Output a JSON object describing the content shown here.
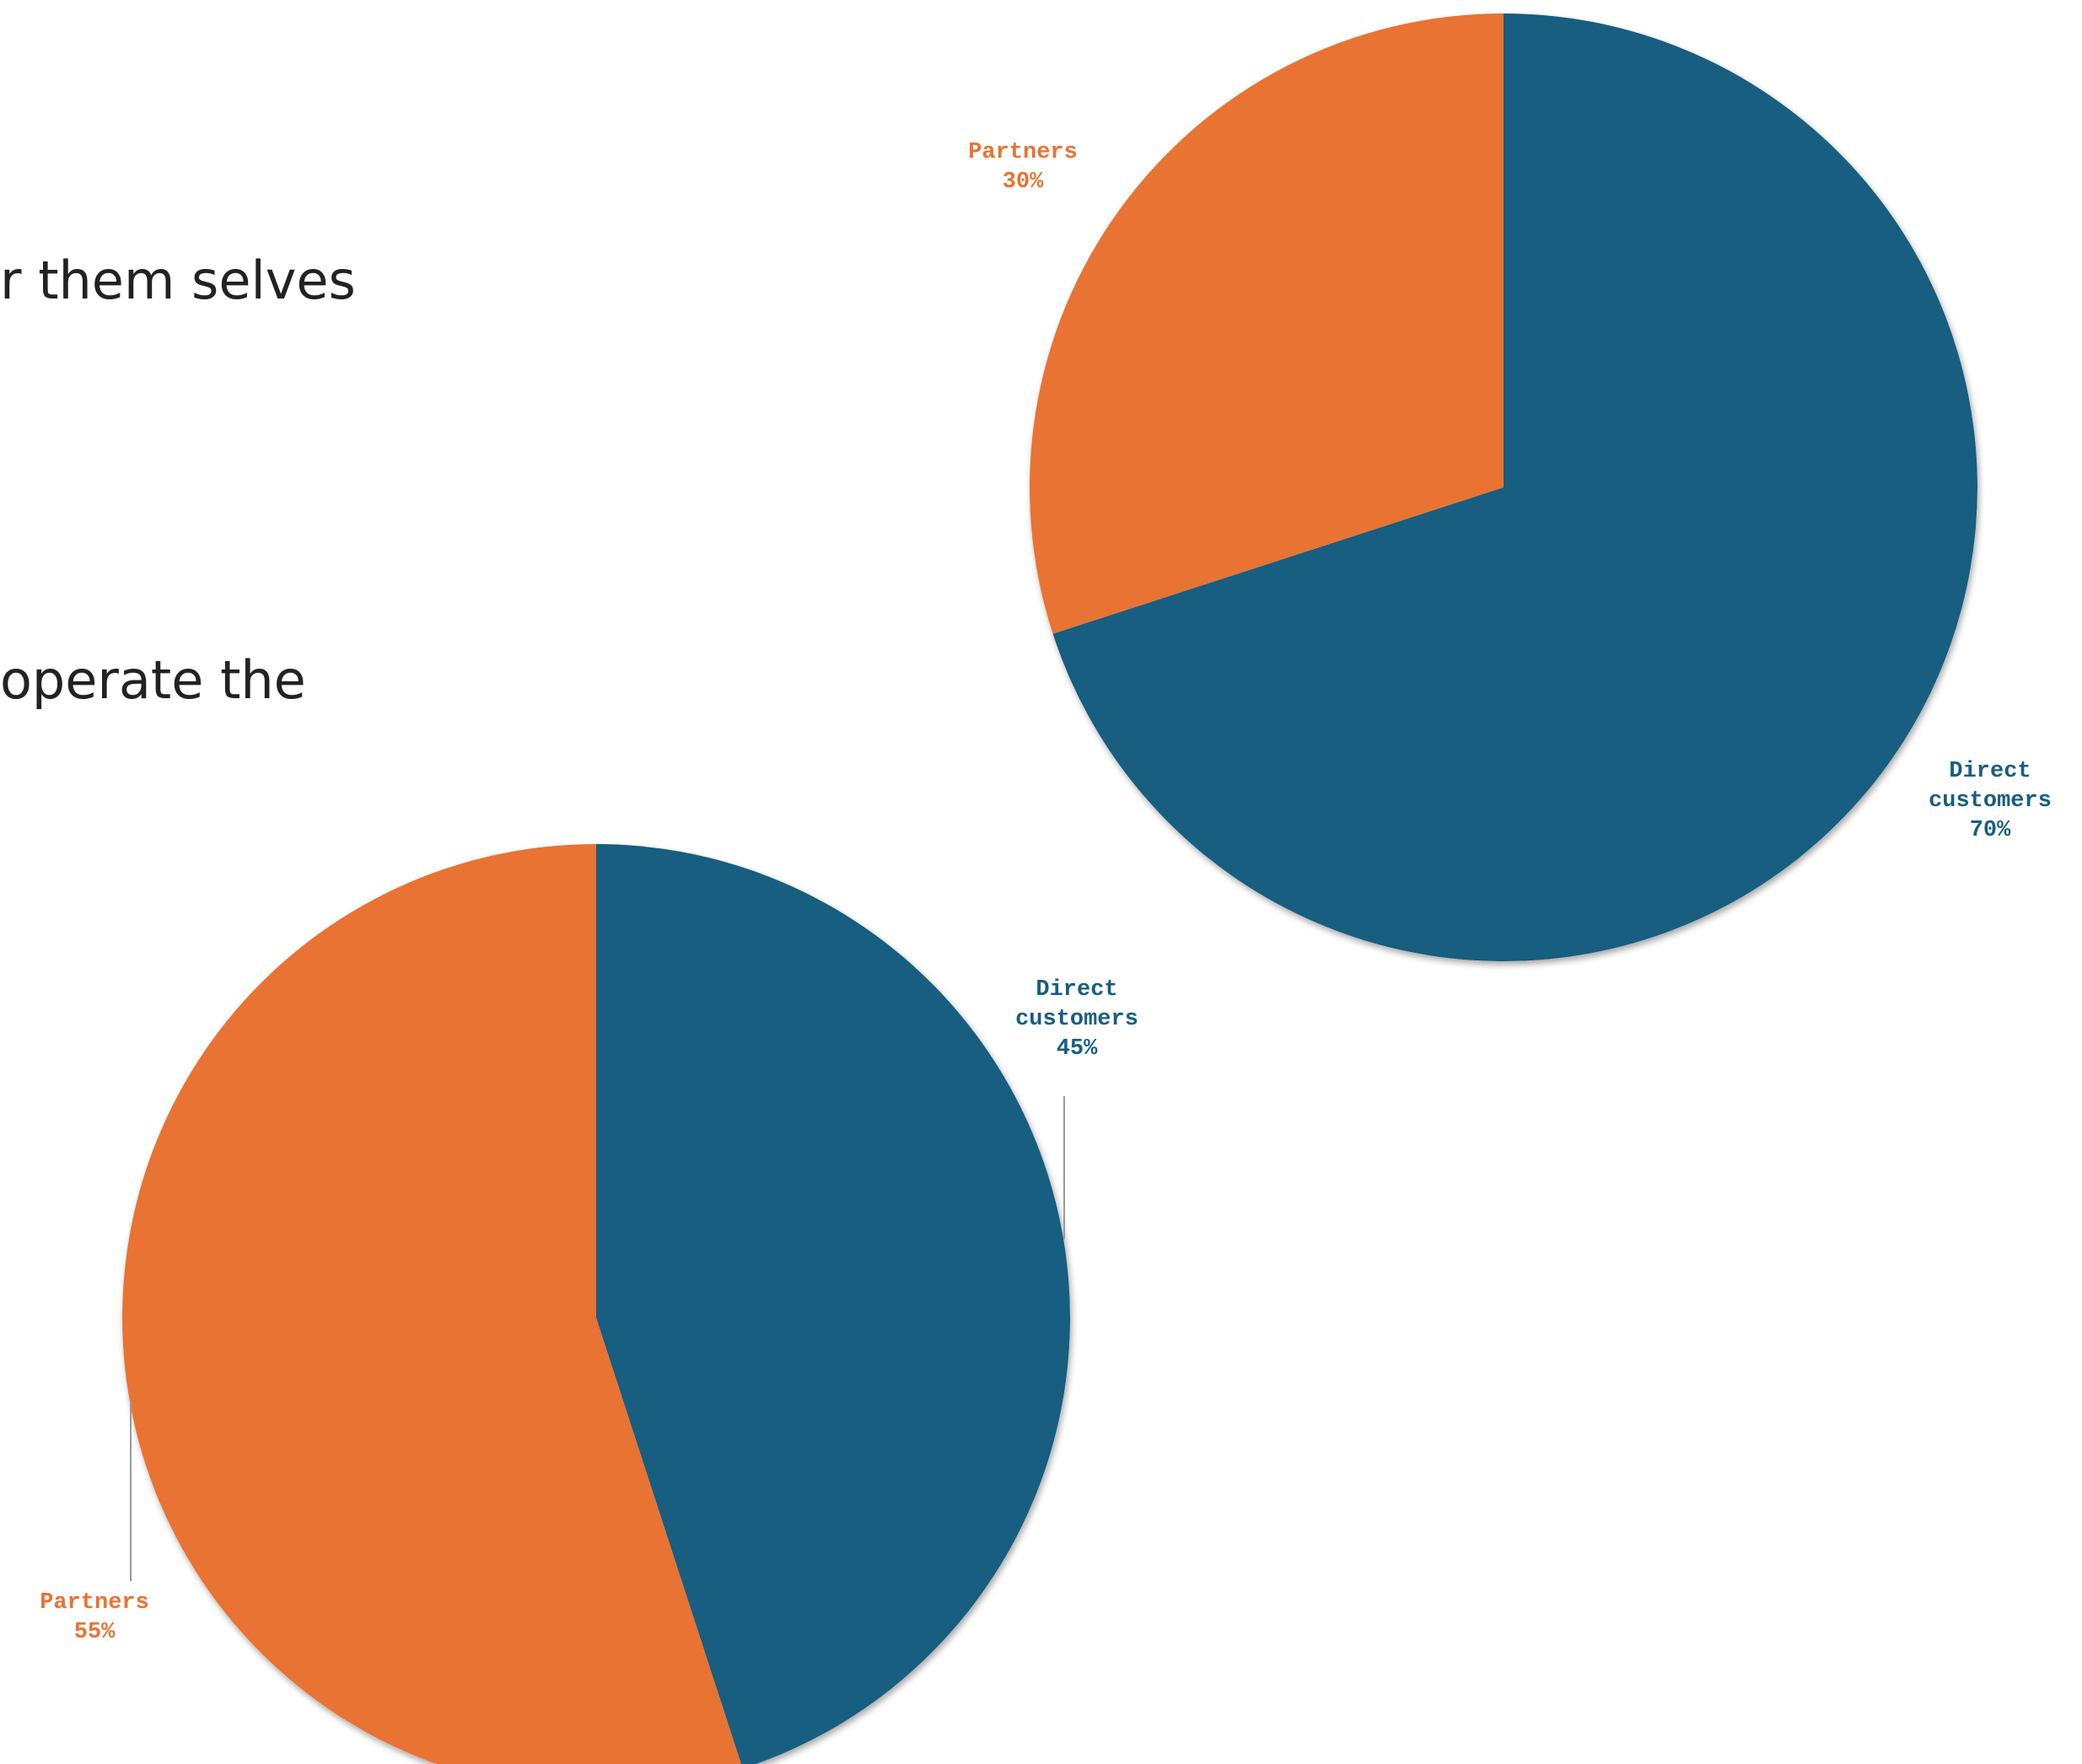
{
  "text_lines": [
    "r them selves",
    "operate the"
  ],
  "colors": {
    "direct": "#175e80",
    "partners": "#e87333"
  },
  "chart_data": [
    {
      "type": "pie",
      "title": "",
      "slices": [
        {
          "label": "Direct customers",
          "value": 70,
          "display": "70%",
          "color": "#175e80"
        },
        {
          "label": "Partners",
          "value": 30,
          "display": "30%",
          "color": "#e87333"
        }
      ]
    },
    {
      "type": "pie",
      "title": "",
      "slices": [
        {
          "label": "Direct customers",
          "value": 45,
          "display": "45%",
          "color": "#175e80"
        },
        {
          "label": "Partners",
          "value": 55,
          "display": "55%",
          "color": "#e87333"
        }
      ]
    }
  ]
}
